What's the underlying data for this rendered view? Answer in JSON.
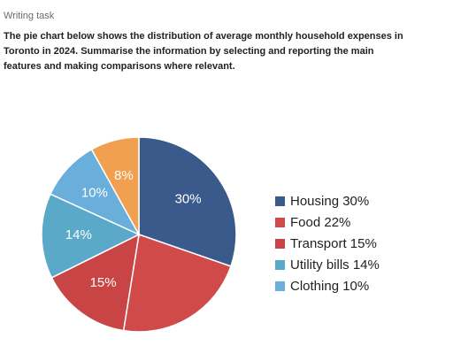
{
  "header": {
    "task_label": "Writing task",
    "prompt_lines": [
      "The pie chart below shows the distribution of average monthly household expenses in",
      "Toronto in 2024. Summarise the information by selecting and reporting the main",
      "features and making comparisons where relevant."
    ]
  },
  "chart_data": {
    "type": "pie",
    "title": "",
    "slices": [
      {
        "label": "Housing",
        "value": 30,
        "color": "#3a5a8c"
      },
      {
        "label": "Food",
        "value": 22,
        "color": "#d04a4a"
      },
      {
        "label": "Transport",
        "value": 15,
        "color": "#c94444"
      },
      {
        "label": "Utility bills",
        "value": 14,
        "color": "#5aa9c8"
      },
      {
        "label": "Clothing",
        "value": 10,
        "color": "#6aaedb"
      },
      {
        "label": "",
        "value": 8,
        "color": "#f0a050"
      }
    ],
    "slice_labels": [
      "30%",
      "",
      "15%",
      "14%",
      "10%",
      "8%"
    ],
    "legend": {
      "placement": "right",
      "entries": [
        {
          "label": "Housing 30%",
          "color": "#3a5a8c"
        },
        {
          "label": "Food 22%",
          "color": "#d04a4a"
        },
        {
          "label": "Transport 15%",
          "color": "#c94444"
        },
        {
          "label": "Utility bills 14%",
          "color": "#5aa9c8"
        },
        {
          "label": "Clothing 10%",
          "color": "#6aaedb"
        }
      ]
    }
  }
}
